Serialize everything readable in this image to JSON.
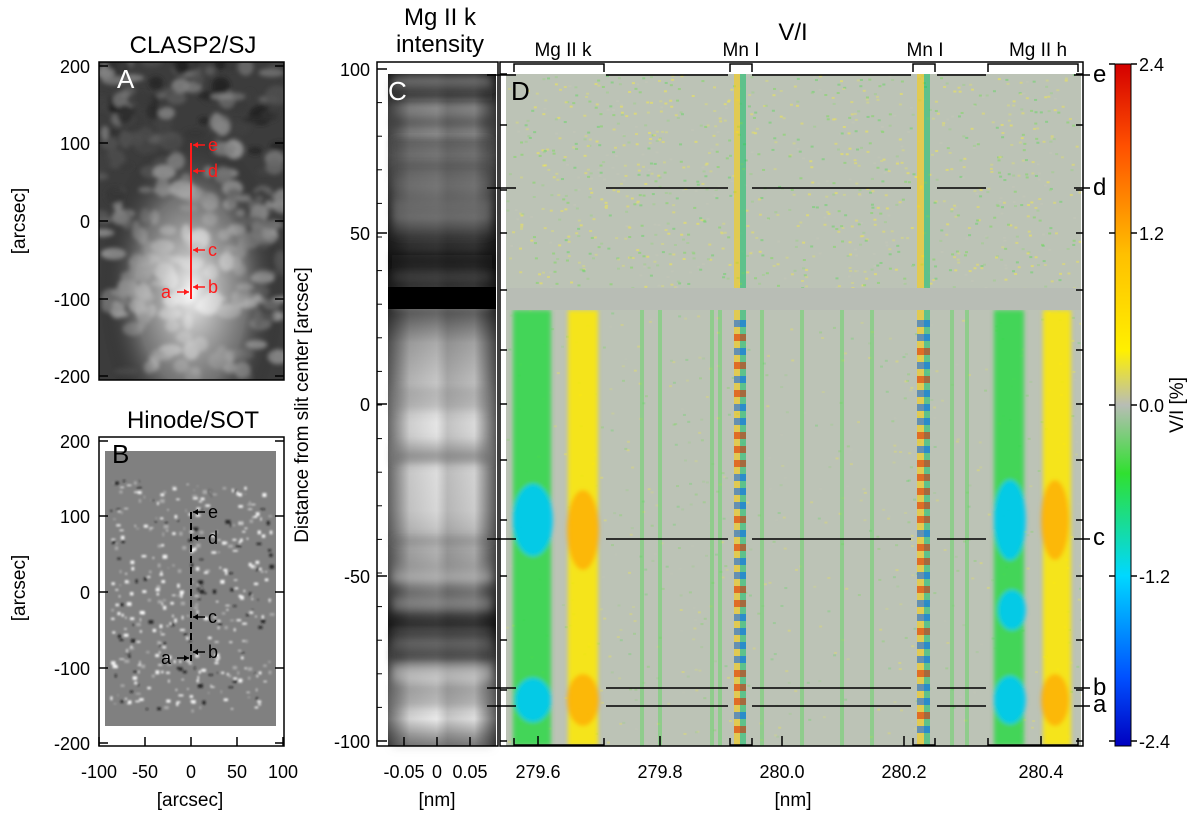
{
  "panelA": {
    "title": "CLASP2/SJ",
    "letter": "A",
    "ylabel": "[arcsec]",
    "yticks": [
      "200",
      "100",
      "0",
      "-100",
      "-200"
    ],
    "markers": [
      "e",
      "d",
      "c",
      "b",
      "a"
    ],
    "marker_color": "#ff1a1a"
  },
  "panelB": {
    "title": "Hinode/SOT",
    "letter": "B",
    "ylabel": "[arcsec]",
    "xlabel": "[arcsec]",
    "yticks": [
      "200",
      "100",
      "0",
      "-100",
      "-200"
    ],
    "xticks": [
      "-100",
      "-50",
      "0",
      "50",
      "100"
    ],
    "markers": [
      "e",
      "d",
      "c",
      "b",
      "a"
    ]
  },
  "panelC": {
    "title_line1": "Mg II k",
    "title_line2": "intensity",
    "letter": "C",
    "ylabel": "Distance from slit center [arcsec]",
    "yticks": [
      "100",
      "50",
      "0",
      "-50",
      "-100"
    ],
    "xticks": [
      "-0.05",
      "0",
      "0.05"
    ],
    "xlabel": "[nm]"
  },
  "panelD": {
    "title": "V/I",
    "letter": "D",
    "line_labels": [
      "Mg II k",
      "Mn I",
      "Mn I",
      "Mg II h"
    ],
    "xticks": [
      "279.6",
      "279.8",
      "280.0",
      "280.2",
      "280.4"
    ],
    "xlabel": "[nm]",
    "right_markers": [
      "e",
      "d",
      "c",
      "b",
      "a"
    ]
  },
  "colorbar": {
    "label": "V/I [%]",
    "ticks": [
      "2.4",
      "1.2",
      "0.0",
      "-1.2",
      "-2.4"
    ],
    "colors": [
      "#ff0000",
      "#ffa500",
      "#ffff00",
      "#b8bdb5",
      "#00e000",
      "#00e0ff",
      "#0000ff"
    ]
  }
}
